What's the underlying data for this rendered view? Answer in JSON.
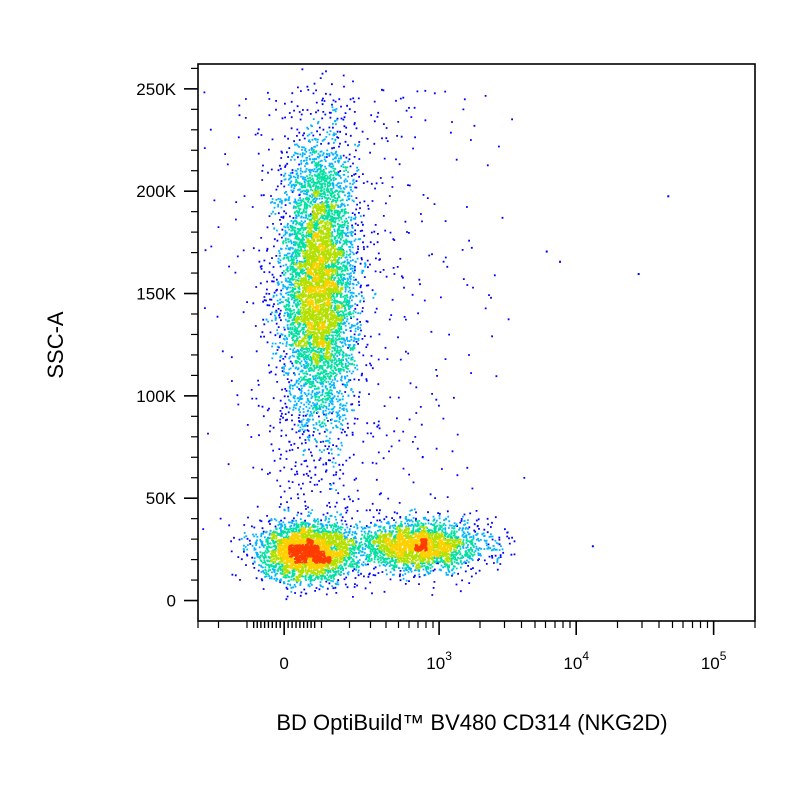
{
  "chart_data": {
    "type": "scatter",
    "title": "",
    "xlabel": "BD OptiBuild™ BV480 CD314 (NKG2D)",
    "ylabel": "SSC-A",
    "x_scale": "biexponential",
    "xlim": [
      -300,
      200000
    ],
    "ylim": [
      -10000,
      262144
    ],
    "y_ticks": [
      {
        "value": 0,
        "label": "0"
      },
      {
        "value": 50000,
        "label": "50K"
      },
      {
        "value": 100000,
        "label": "100K"
      },
      {
        "value": 150000,
        "label": "150K"
      },
      {
        "value": 200000,
        "label": "200K"
      },
      {
        "value": 250000,
        "label": "250K"
      }
    ],
    "x_ticks": [
      {
        "value": 0,
        "label": "0",
        "exp": ""
      },
      {
        "value": 1000,
        "label": "10",
        "exp": "3"
      },
      {
        "value": 10000,
        "label": "10",
        "exp": "4"
      },
      {
        "value": 100000,
        "label": "10",
        "exp": "5"
      }
    ],
    "color_scale": [
      "#0000ff",
      "#00b4ff",
      "#00e0a0",
      "#b4e000",
      "#ffd000",
      "#ff3c00"
    ],
    "populations": [
      {
        "name": "",
        "x_center": 90,
        "x_spread": 60,
        "y_center": 155000,
        "y_spread": 35000,
        "count": 6000
      },
      {
        "name": "",
        "x_center": 60,
        "x_spread": 70,
        "y_center": 24000,
        "y_spread": 7000,
        "count": 3000
      },
      {
        "name": "",
        "x_center": 700,
        "x_spread": 500,
        "y_center": 27000,
        "y_spread": 6000,
        "count": 2500
      }
    ],
    "outliers": [
      {
        "x": 46000,
        "y": 198000
      },
      {
        "x": 28000,
        "y": 160000
      },
      {
        "x": 7500,
        "y": 166000
      },
      {
        "x": 6000,
        "y": 171000
      },
      {
        "x": 13000,
        "y": 27000
      }
    ],
    "grid": false,
    "legend": "none"
  }
}
